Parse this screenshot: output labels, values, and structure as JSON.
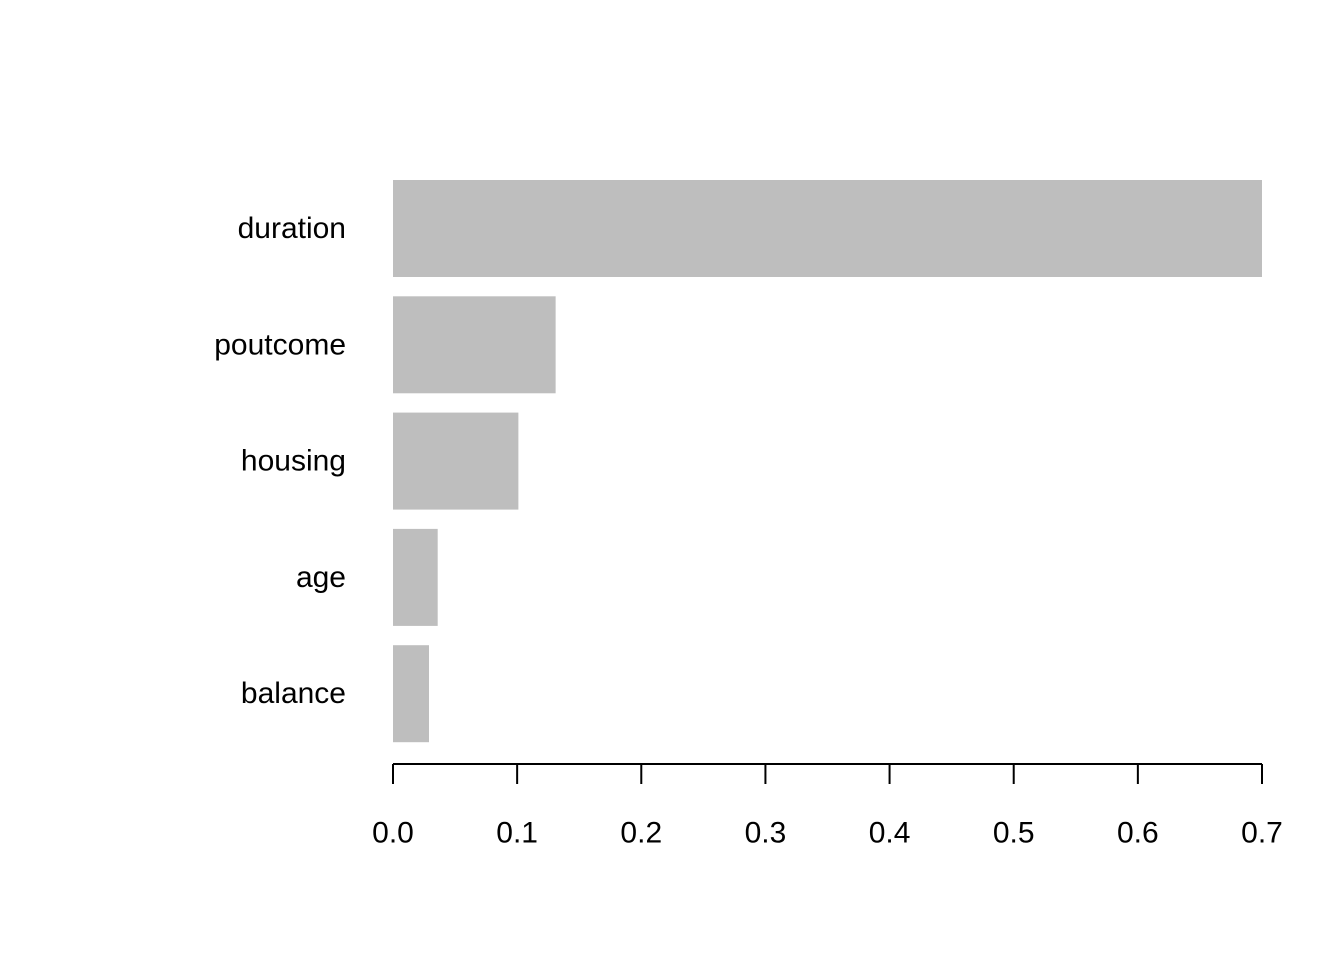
{
  "chart_data": {
    "type": "bar",
    "orientation": "horizontal",
    "categories": [
      "duration",
      "poutcome",
      "housing",
      "age",
      "balance"
    ],
    "values": [
      0.7,
      0.131,
      0.101,
      0.036,
      0.029
    ],
    "xlim": [
      0,
      0.7
    ],
    "xticks": [
      0.0,
      0.1,
      0.2,
      0.3,
      0.4,
      0.5,
      0.6,
      0.7
    ],
    "xtick_labels": [
      "0.0",
      "0.1",
      "0.2",
      "0.3",
      "0.4",
      "0.5",
      "0.6",
      "0.7"
    ],
    "title": "",
    "xlabel": "",
    "ylabel": "",
    "grid": false,
    "bar_color": "#bebebe"
  }
}
